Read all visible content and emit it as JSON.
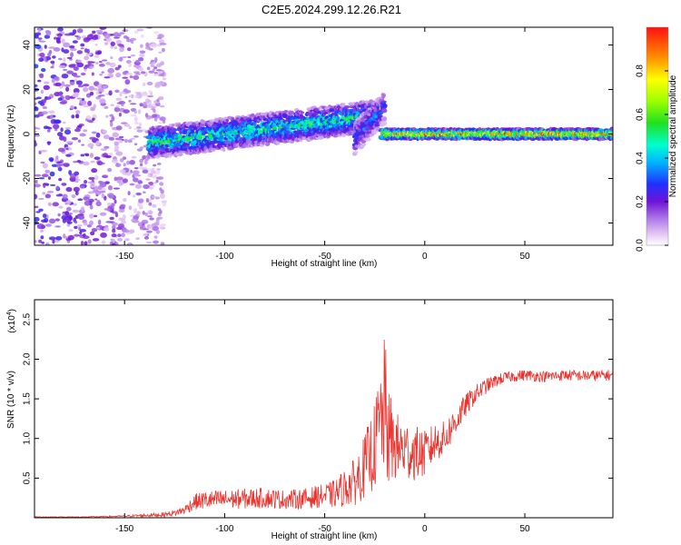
{
  "title": "C2E5.2024.299.12.26.R21",
  "chart_data": [
    {
      "type": "heatmap",
      "xlabel": "Height of straight line (km)",
      "ylabel": "Frequency (Hz)",
      "xlim": [
        -195,
        94
      ],
      "ylim": [
        -50,
        48
      ],
      "x_ticks": [
        -150,
        -100,
        -50,
        0,
        50
      ],
      "x_tick_labels": [
        "-150",
        "-100",
        "-50",
        "0",
        "50"
      ],
      "y_ticks": [
        -40,
        -20,
        0,
        20,
        40
      ],
      "y_tick_labels": [
        "-40",
        "-20",
        "0",
        "20",
        "40"
      ],
      "colorbar": {
        "label": "Normalized spectral amplitude",
        "range": [
          0,
          1
        ],
        "ticks": [
          0.0,
          0.2,
          0.4,
          0.6,
          0.8
        ],
        "tick_labels": [
          "0.0",
          "0.2",
          "0.4",
          "0.6",
          "0.8"
        ]
      },
      "features": [
        {
          "name": "noise",
          "x_range": [
            -195,
            -130
          ],
          "y_range": [
            -50,
            48
          ],
          "amplitude": 0.15
        },
        {
          "name": "rising-trace",
          "x_start": -138,
          "x_end": -25,
          "y_start": -4,
          "y_end": 8,
          "amplitude": 0.45
        },
        {
          "name": "branch",
          "x_start": -35,
          "x_end": -20,
          "y_start": -2,
          "y_end": 12,
          "amplitude": 0.3
        },
        {
          "name": "flat-trace",
          "x_start": -22,
          "x_end": 94,
          "y": 0,
          "amplitude": 0.8
        }
      ],
      "grid": false,
      "colormap": "rainbow"
    },
    {
      "type": "line",
      "xlabel": "Height of straight line (km)",
      "ylabel": "SNR (10 * v/v)",
      "y_multiplier": "(x10",
      "y_multiplier_exp": "4",
      "y_multiplier_close": ")",
      "xlim": [
        -195,
        94
      ],
      "ylim": [
        0,
        2.75
      ],
      "x_ticks": [
        -150,
        -100,
        -50,
        0,
        50
      ],
      "x_tick_labels": [
        "-150",
        "-100",
        "-50",
        "0",
        "50"
      ],
      "y_ticks": [
        0.5,
        1.0,
        1.5,
        2.0,
        2.5
      ],
      "y_tick_labels": [
        "0.5",
        "1.0",
        "1.5",
        "2.0",
        "2.5"
      ],
      "series": [
        {
          "color": "#e8332e",
          "x": [
            -195,
            -170,
            -150,
            -140,
            -130,
            -125,
            -120,
            -115,
            -110,
            -100,
            -90,
            -80,
            -70,
            -60,
            -50,
            -45,
            -40,
            -35,
            -30,
            -25,
            -22,
            -20,
            -18,
            -15,
            -10,
            -5,
            0,
            5,
            10,
            15,
            20,
            25,
            30,
            35,
            40,
            50,
            60,
            70,
            80,
            94
          ],
          "y": [
            0.01,
            0.01,
            0.02,
            0.03,
            0.04,
            0.06,
            0.1,
            0.2,
            0.22,
            0.23,
            0.24,
            0.25,
            0.23,
            0.24,
            0.28,
            0.3,
            0.38,
            0.45,
            0.65,
            0.9,
            1.2,
            1.4,
            1.0,
            0.9,
            0.85,
            0.82,
            0.8,
            0.95,
            1.0,
            1.2,
            1.4,
            1.55,
            1.65,
            1.72,
            1.77,
            1.8,
            1.78,
            1.8,
            1.79,
            1.8
          ],
          "noise": [
            0.005,
            0.005,
            0.01,
            0.02,
            0.03,
            0.04,
            0.06,
            0.1,
            0.12,
            0.12,
            0.13,
            0.13,
            0.12,
            0.13,
            0.15,
            0.18,
            0.24,
            0.3,
            0.4,
            0.55,
            0.75,
            0.9,
            0.65,
            0.45,
            0.4,
            0.35,
            0.3,
            0.25,
            0.22,
            0.2,
            0.15,
            0.12,
            0.1,
            0.08,
            0.07,
            0.07,
            0.07,
            0.07,
            0.07,
            0.07
          ]
        }
      ],
      "grid": false
    }
  ]
}
